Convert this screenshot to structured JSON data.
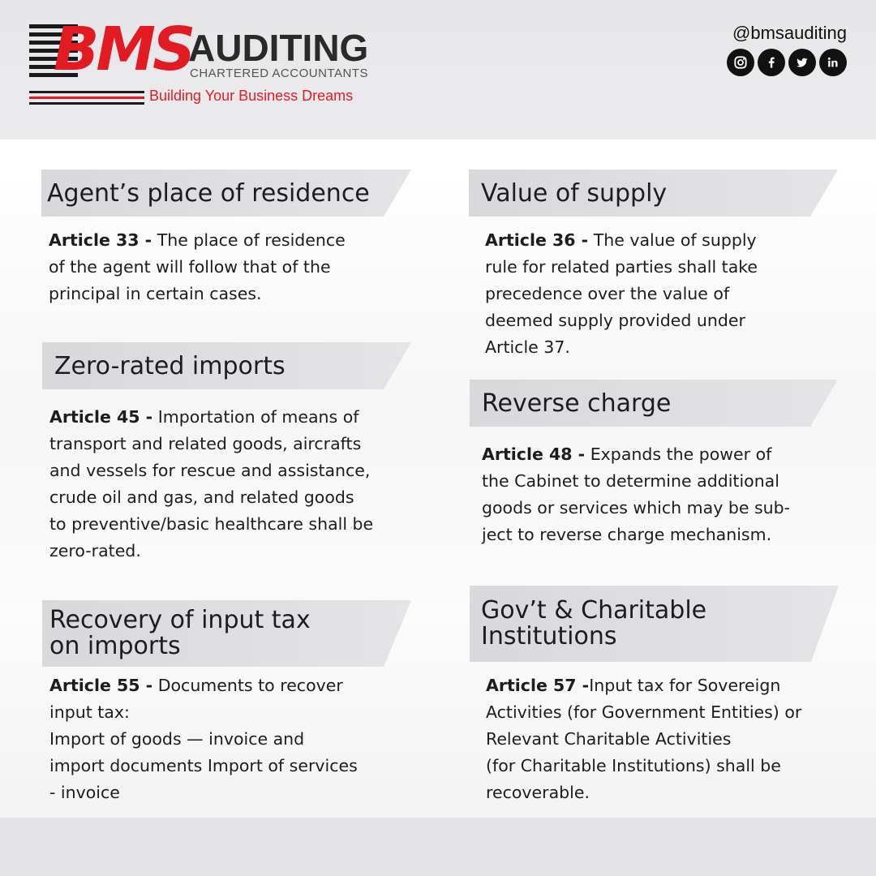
{
  "brand": {
    "logo_text": "BMS",
    "name": "AUDITING",
    "subtitle": "CHARTERED ACCOUNTANTS",
    "tagline": "Building Your Business Dreams",
    "colors": {
      "accent": "#e21b23",
      "dark": "#1a1a1a"
    }
  },
  "social": {
    "handle": "@bmsauditing",
    "icons": [
      "instagram-icon",
      "facebook-icon",
      "twitter-icon",
      "linkedin-icon"
    ]
  },
  "sections": [
    {
      "title": "Agent’s place of residence",
      "article": "Article 33 -",
      "lines": [
        " The place of residence",
        "of the agent will follow that of the",
        "principal in certain cases."
      ]
    },
    {
      "title": "Zero-rated imports",
      "article": "Article 45 -",
      "lines": [
        " Importation of means of",
        "transport and related goods, aircrafts",
        "and vessels for rescue and assistance,",
        "crude oil and gas, and related goods",
        "to preventive/basic healthcare shall be",
        "zero-rated."
      ]
    },
    {
      "title_lines": [
        "Recovery of input tax",
        "on imports"
      ],
      "article": "Article 55 -",
      "lines": [
        "  Documents to recover",
        "input tax:",
        "Import of goods — invoice and",
        "import documents Import of services",
        "- invoice"
      ]
    },
    {
      "title": "Value of supply",
      "article": "Article 36 -",
      "lines": [
        " The value of supply",
        "rule for related parties shall take",
        "precedence over the value of",
        "deemed supply provided under",
        "Article 37."
      ]
    },
    {
      "title": "Reverse charge",
      "article": "Article 48 -",
      "lines": [
        "  Expands the power of",
        "the Cabinet to determine additional",
        "goods or services which may be sub-",
        "ject to reverse charge mechanism."
      ]
    },
    {
      "title_lines": [
        "Gov’t & Charitable",
        "Institutions"
      ],
      "article": "Article 57 -",
      "lines": [
        "Input tax for Sovereign",
        "Activities (for Government Entities) or",
        "Relevant Charitable Activities",
        "(for Charitable Institutions) shall be",
        "recoverable."
      ]
    }
  ]
}
